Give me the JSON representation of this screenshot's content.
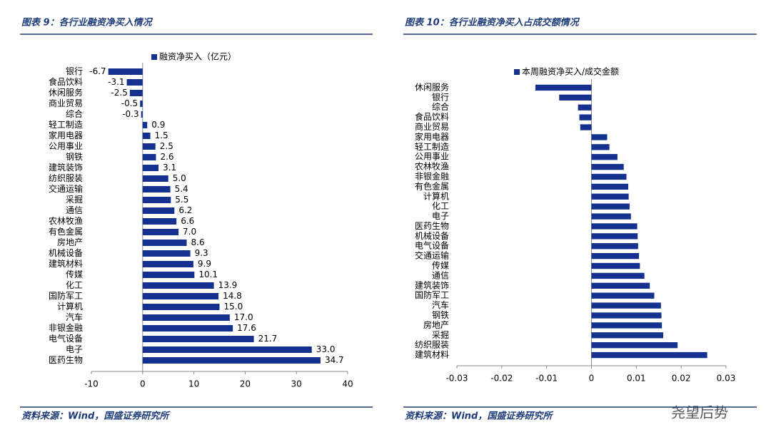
{
  "chart_data": [
    {
      "type": "bar",
      "orientation": "horizontal",
      "title": "图表 9：各行业融资净买入情况",
      "source": "资料来源：Wind，国盛证券研究所",
      "categories": [
        "银行",
        "食品饮料",
        "休闲服务",
        "商业贸易",
        "综合",
        "轻工制造",
        "家用电器",
        "公用事业",
        "钢铁",
        "建筑装饰",
        "纺织服装",
        "交通运输",
        "采掘",
        "通信",
        "农林牧渔",
        "有色金属",
        "房地产",
        "机械设备",
        "建筑材料",
        "传媒",
        "化工",
        "国防军工",
        "计算机",
        "汽车",
        "非银金融",
        "电气设备",
        "电子",
        "医药生物"
      ],
      "series": [
        {
          "name": "融资净买入（亿元）",
          "color": "#14318f",
          "values": [
            -6.7,
            -3.1,
            -2.5,
            -0.5,
            -0.3,
            0.9,
            1.5,
            2.5,
            2.6,
            3.1,
            5.0,
            5.4,
            5.5,
            6.2,
            6.6,
            7.0,
            8.6,
            9.3,
            9.9,
            10.1,
            13.9,
            14.8,
            15.0,
            17.0,
            17.6,
            21.7,
            33.0,
            34.7
          ],
          "value_labels": [
            "-6.7",
            "-3.1",
            "-2.5",
            "-0.5",
            "-0.3",
            "0.9",
            "1.5",
            "2.5",
            "2.6",
            "3.1",
            "5.0",
            "5.4",
            "5.5",
            "6.2",
            "6.6",
            "7.0",
            "8.6",
            "9.3",
            "9.9",
            "10.1",
            "13.9",
            "14.8",
            "15.0",
            "17.0",
            "17.6",
            "21.7",
            "33.0",
            "34.7"
          ]
        }
      ],
      "xlim": [
        -10,
        40
      ],
      "xticks": [
        -10,
        0,
        10,
        20,
        30,
        40
      ]
    },
    {
      "type": "bar",
      "orientation": "horizontal",
      "title": "图表 10：各行业融资净买入占成交额情况",
      "source": "资料来源：Wind，国盛证券研究所",
      "categories": [
        "休闲服务",
        "银行",
        "综合",
        "食品饮料",
        "商业贸易",
        "家用电器",
        "轻工制造",
        "公用事业",
        "农林牧渔",
        "非银金融",
        "有色金属",
        "计算机",
        "化工",
        "电子",
        "医药生物",
        "机械设备",
        "电气设备",
        "交通运输",
        "传媒",
        "通信",
        "建筑装饰",
        "国防军工",
        "汽车",
        "钢铁",
        "房地产",
        "采掘",
        "纺织服装",
        "建筑材料"
      ],
      "series": [
        {
          "name": "本周融资净买入/成交金额",
          "color": "#14318f",
          "values": [
            -0.0125,
            -0.0072,
            -0.003,
            -0.0027,
            -0.0025,
            0.0035,
            0.004,
            0.0058,
            0.0072,
            0.0078,
            0.0082,
            0.0083,
            0.0085,
            0.0088,
            0.0102,
            0.0103,
            0.0104,
            0.0106,
            0.0108,
            0.0118,
            0.013,
            0.014,
            0.0155,
            0.0156,
            0.0157,
            0.016,
            0.0192,
            0.0258
          ]
        }
      ],
      "xlim": [
        -0.03,
        0.03
      ],
      "xticks": [
        -0.03,
        -0.02,
        -0.01,
        0,
        0.01,
        0.02,
        0.03
      ]
    }
  ],
  "watermark": "尧望后势"
}
